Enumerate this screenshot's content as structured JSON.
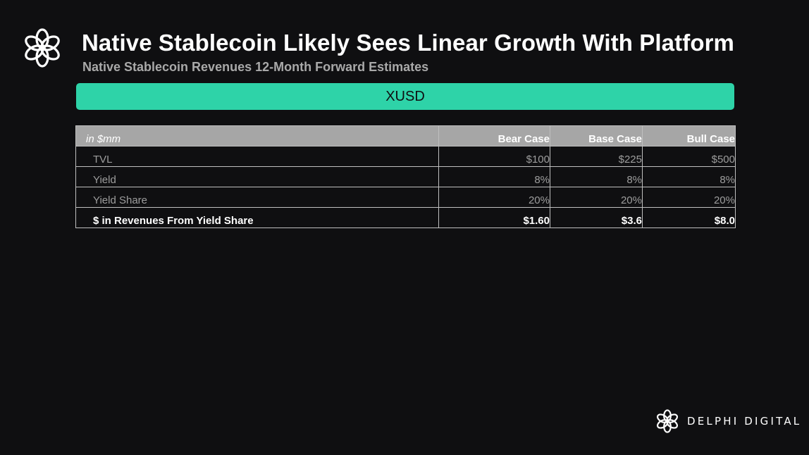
{
  "header": {
    "logo_icon": "delphi-flower-icon",
    "title": "Native Stablecoin Likely Sees Linear Growth With Platform",
    "subtitle": "Native Stablecoin Revenues 12-Month Forward Estimates"
  },
  "banner": {
    "label": "XUSD",
    "color": "#2ed3a8"
  },
  "table": {
    "unit_label": "in $mm",
    "columns": [
      "Bear Case",
      "Base Case",
      "Bull Case"
    ],
    "rows": [
      {
        "label": "TVL",
        "values": [
          "$100",
          "$225",
          "$500"
        ]
      },
      {
        "label": "Yield",
        "values": [
          "8%",
          "8%",
          "8%"
        ]
      },
      {
        "label": "Yield Share",
        "values": [
          "20%",
          "20%",
          "20%"
        ]
      },
      {
        "label": "$ in Revenues From Yield Share",
        "values": [
          "$1.60",
          "$3.6",
          "$8.0"
        ]
      }
    ]
  },
  "footer": {
    "logo_icon": "delphi-flower-icon",
    "brand": "DELPHI DIGITAL"
  }
}
